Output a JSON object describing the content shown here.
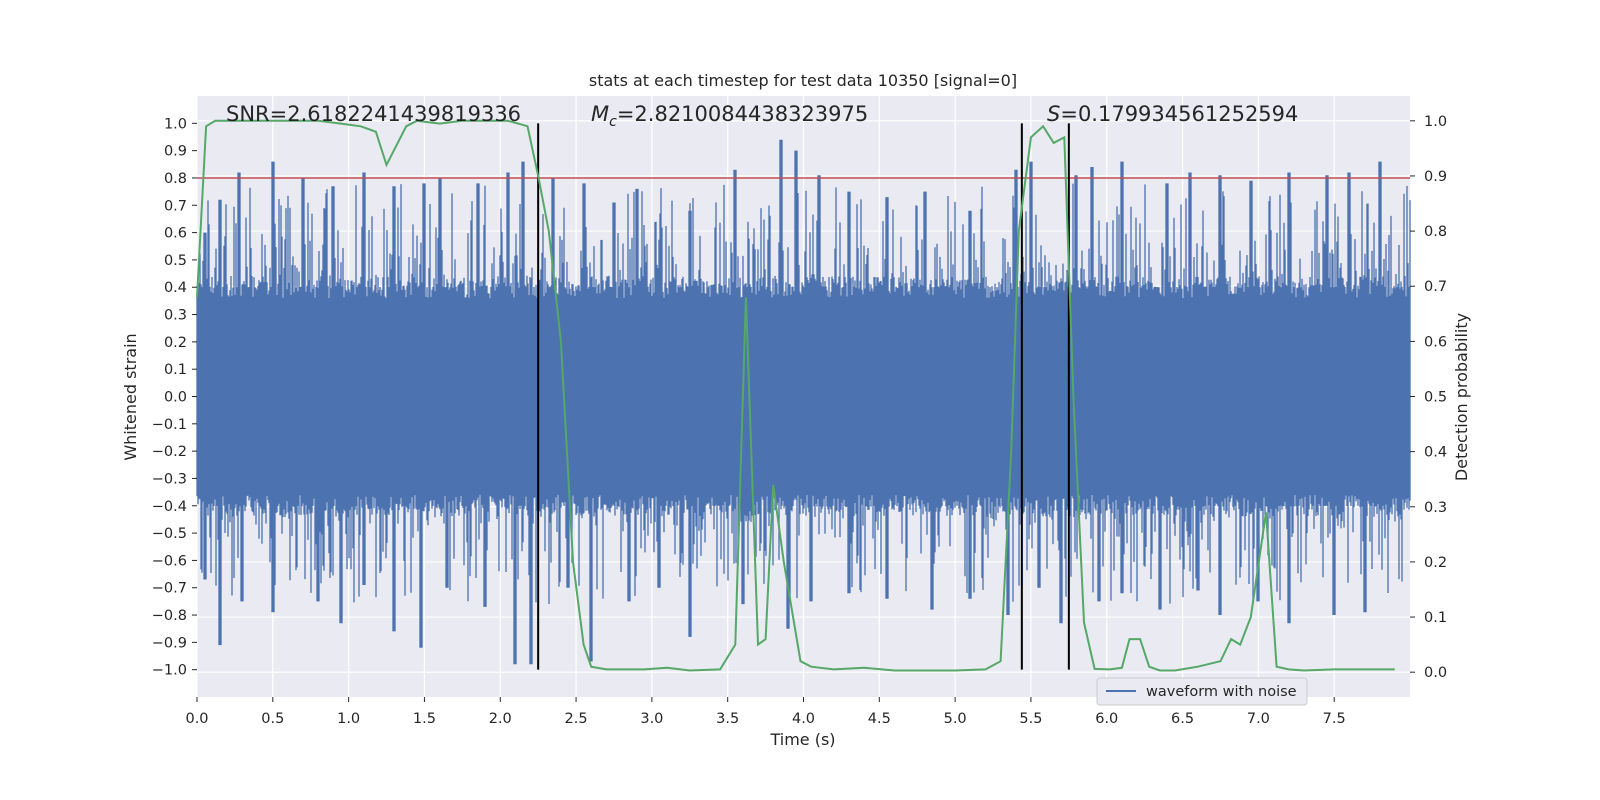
{
  "chart_data": {
    "type": "line",
    "title": "stats at each timestep for test data 10350 [signal=0]",
    "xlabel": "Time (s)",
    "ylabel": "Whitened strain",
    "y2label": "Detection probability",
    "xlim": [
      0.0,
      8.0
    ],
    "ylim": [
      -1.1,
      1.1
    ],
    "y2lim": [
      -0.045,
      1.045
    ],
    "x_ticks": [
      0.0,
      0.5,
      1.0,
      1.5,
      2.0,
      2.5,
      3.0,
      3.5,
      4.0,
      4.5,
      5.0,
      5.5,
      6.0,
      6.5,
      7.0,
      7.5
    ],
    "x_tick_labels": [
      "0.0",
      "0.5",
      "1.0",
      "1.5",
      "2.0",
      "2.5",
      "3.0",
      "3.5",
      "4.0",
      "4.5",
      "5.0",
      "5.5",
      "6.0",
      "6.5",
      "7.0",
      "7.5"
    ],
    "y_ticks": [
      1.0,
      0.9,
      0.8,
      0.7,
      0.6,
      0.5,
      0.4,
      0.3,
      0.2,
      0.1,
      0.0,
      -0.1,
      -0.2,
      -0.3,
      -0.4,
      -0.5,
      -0.6,
      -0.7,
      -0.8,
      -0.9,
      -1.0
    ],
    "y_tick_labels": [
      "1.0",
      "0.9",
      "0.8",
      "0.7",
      "0.6",
      "0.5",
      "0.4",
      "0.3",
      "0.2",
      "0.1",
      "0.0",
      "−0.1",
      "−0.2",
      "−0.3",
      "−0.4",
      "−0.5",
      "−0.6",
      "−0.7",
      "−0.8",
      "−0.9",
      "−1.0"
    ],
    "y2_ticks": [
      1.0,
      0.9,
      0.8,
      0.7,
      0.6,
      0.5,
      0.4,
      0.3,
      0.2,
      0.1,
      0.0
    ],
    "y2_tick_labels": [
      "1.0",
      "0.9",
      "0.8",
      "0.7",
      "0.6",
      "0.5",
      "0.4",
      "0.3",
      "0.2",
      "0.1",
      "0.0"
    ],
    "annotations": {
      "snr": "SNR=2.6182241439819336",
      "mc_symbol": "M",
      "mc_subscript": "c",
      "mc_value": "=2.8210084438323975",
      "s_symbol": "S",
      "s_value": "=0.179934561252594"
    },
    "threshold": {
      "y": 0.8,
      "color": "#c44e52"
    },
    "vertical_lines": [
      2.25,
      5.44,
      5.75
    ],
    "waveform": {
      "name": "waveform with noise",
      "color": "#4c72b0",
      "envelope": "dense noise, approx. ±0.4 baseline with spikes up to ~0.94 and down to ~-0.98",
      "peaks_x": [
        0.05,
        0.15,
        0.28,
        0.5,
        0.7,
        0.9,
        1.1,
        1.3,
        1.5,
        1.6,
        1.85,
        2.05,
        2.15,
        2.35,
        2.55,
        2.75,
        2.9,
        3.25,
        3.55,
        3.85,
        3.95,
        4.1,
        4.3,
        4.55,
        4.8,
        5.1,
        5.4,
        5.5,
        5.8,
        5.9,
        6.1,
        6.4,
        6.55,
        6.75,
        6.95,
        7.2,
        7.45,
        7.6,
        7.8
      ],
      "peaks_y": [
        0.6,
        0.72,
        0.82,
        0.86,
        0.8,
        0.77,
        0.82,
        0.77,
        0.78,
        0.8,
        0.78,
        0.82,
        0.86,
        0.8,
        0.78,
        0.71,
        0.76,
        0.68,
        0.83,
        0.94,
        0.9,
        0.81,
        0.75,
        0.73,
        0.75,
        0.68,
        0.83,
        0.86,
        0.81,
        0.84,
        0.86,
        0.78,
        0.82,
        0.81,
        0.79,
        0.82,
        0.81,
        0.82,
        0.86
      ],
      "troughs_x": [
        0.05,
        0.15,
        0.3,
        0.5,
        0.8,
        0.95,
        1.1,
        1.3,
        1.48,
        1.65,
        1.9,
        2.1,
        2.2,
        2.45,
        2.6,
        2.85,
        3.05,
        3.25,
        3.6,
        3.9,
        4.05,
        4.3,
        4.55,
        4.85,
        5.1,
        5.35,
        5.55,
        5.7,
        5.95,
        6.1,
        6.35,
        6.6,
        6.75,
        7.0,
        7.2,
        7.5,
        7.7
      ],
      "troughs_y": [
        -0.67,
        -0.91,
        -0.75,
        -0.79,
        -0.75,
        -0.83,
        -0.69,
        -0.86,
        -0.92,
        -0.7,
        -0.77,
        -0.98,
        -0.98,
        -0.7,
        -0.97,
        -0.75,
        -0.7,
        -0.88,
        -0.76,
        -0.85,
        -0.75,
        -0.72,
        -0.74,
        -0.78,
        -0.74,
        -0.8,
        -0.7,
        -0.83,
        -0.75,
        -0.72,
        -0.78,
        -0.71,
        -0.8,
        -0.75,
        -0.83,
        -0.8,
        -0.79
      ]
    },
    "probability": {
      "name": "detection probability",
      "color": "#55a868",
      "x": [
        0.0,
        0.06,
        0.12,
        0.2,
        0.4,
        0.6,
        0.8,
        0.95,
        1.08,
        1.18,
        1.25,
        1.38,
        1.45,
        1.6,
        1.75,
        1.9,
        2.05,
        2.12,
        2.18,
        2.25,
        2.32,
        2.4,
        2.48,
        2.55,
        2.6,
        2.7,
        2.85,
        2.95,
        3.1,
        3.25,
        3.45,
        3.55,
        3.62,
        3.7,
        3.75,
        3.8,
        3.87,
        3.98,
        4.05,
        4.2,
        4.4,
        4.6,
        4.8,
        5.0,
        5.2,
        5.3,
        5.37,
        5.42,
        5.5,
        5.58,
        5.65,
        5.72,
        5.78,
        5.85,
        5.92,
        6.02,
        6.1,
        6.15,
        6.22,
        6.28,
        6.35,
        6.45,
        6.6,
        6.75,
        6.82,
        6.88,
        6.95,
        7.05,
        7.12,
        7.2,
        7.3,
        7.5,
        7.7,
        7.9
      ],
      "y": [
        0.68,
        0.99,
        1.0,
        1.0,
        1.0,
        1.0,
        1.0,
        0.995,
        0.99,
        0.98,
        0.92,
        0.99,
        1.0,
        0.995,
        1.0,
        1.0,
        1.0,
        0.995,
        0.99,
        0.9,
        0.8,
        0.6,
        0.2,
        0.05,
        0.01,
        0.005,
        0.005,
        0.005,
        0.008,
        0.003,
        0.005,
        0.05,
        0.68,
        0.05,
        0.06,
        0.34,
        0.2,
        0.02,
        0.01,
        0.005,
        0.008,
        0.003,
        0.003,
        0.003,
        0.005,
        0.02,
        0.4,
        0.8,
        0.97,
        0.99,
        0.96,
        0.97,
        0.5,
        0.09,
        0.006,
        0.005,
        0.008,
        0.06,
        0.06,
        0.01,
        0.003,
        0.003,
        0.01,
        0.02,
        0.06,
        0.05,
        0.1,
        0.29,
        0.01,
        0.005,
        0.003,
        0.005,
        0.005,
        0.005
      ]
    },
    "legend": {
      "entries": [
        "waveform with noise"
      ],
      "placement": "lower-right"
    },
    "grid": true
  }
}
